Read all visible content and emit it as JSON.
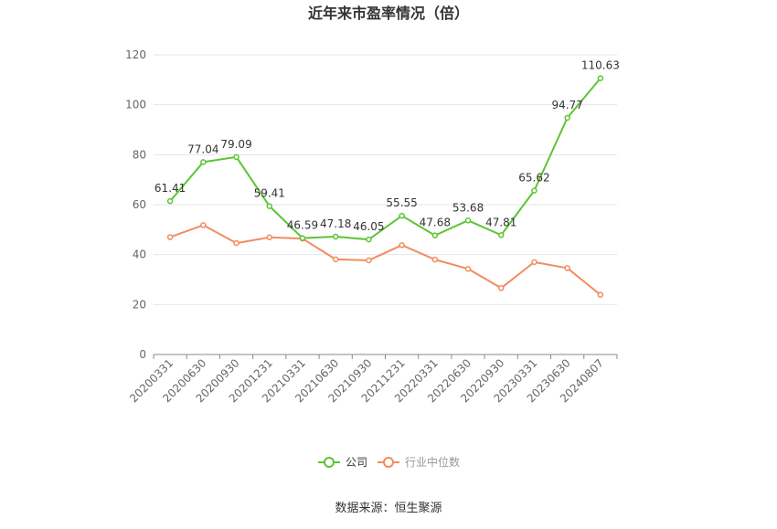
{
  "chart_data": {
    "type": "line",
    "title": "近年来市盈率情况（倍）",
    "source": "数据来源：恒生聚源",
    "categories": [
      "20200331",
      "20200630",
      "20200930",
      "20201231",
      "20210331",
      "20210630",
      "20210930",
      "20211231",
      "20220331",
      "20220630",
      "20220930",
      "20230331",
      "20230630",
      "20240807"
    ],
    "ylim": [
      0,
      120
    ],
    "yticks": [
      0,
      20,
      40,
      60,
      80,
      100,
      120
    ],
    "grid": true,
    "legend_position": "bottom-center",
    "series": [
      {
        "name": "公司",
        "color": "#5cc534",
        "show_labels": true,
        "values": [
          61.41,
          77.04,
          79.09,
          59.41,
          46.59,
          47.18,
          46.05,
          55.55,
          47.68,
          53.68,
          47.81,
          65.62,
          94.77,
          110.63
        ]
      },
      {
        "name": "行业中位数",
        "color": "#f28c5e",
        "show_labels": false,
        "values": [
          47.0,
          51.8,
          44.6,
          46.9,
          46.4,
          38.1,
          37.7,
          43.8,
          38.0,
          34.3,
          26.6,
          37.0,
          34.6,
          23.9
        ]
      }
    ]
  }
}
